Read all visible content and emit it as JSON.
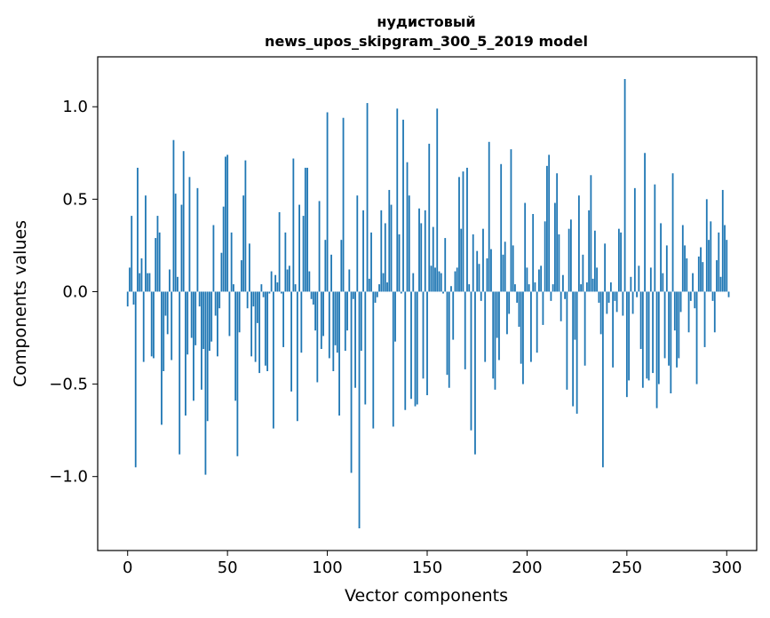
{
  "chart_data": {
    "type": "bar",
    "title": [
      "нудистовый",
      "news_upos_skipgram_300_5_2019 model"
    ],
    "xlabel": "Vector components",
    "ylabel": "Components values",
    "xlim": [
      -15,
      315
    ],
    "ylim": [
      -1.4,
      1.27
    ],
    "xticks": [
      0,
      50,
      100,
      150,
      200,
      250,
      300
    ],
    "xtick_labels": [
      "0",
      "50",
      "100",
      "150",
      "200",
      "250",
      "300"
    ],
    "yticks": [
      -1.0,
      -0.5,
      0.0,
      0.5,
      1.0
    ],
    "ytick_labels": [
      "−1.0",
      "−0.5",
      "0.0",
      "0.5",
      "1.0"
    ],
    "grid": false,
    "bar_color": "#1f77b4",
    "series": [
      {
        "name": "нудистовый",
        "x_start": 0,
        "values": [
          -0.08,
          0.13,
          0.41,
          -0.07,
          -0.95,
          0.67,
          0.1,
          0.18,
          -0.38,
          0.52,
          0.1,
          0.1,
          -0.35,
          -0.36,
          0.29,
          0.41,
          0.32,
          -0.72,
          -0.43,
          -0.13,
          -0.23,
          0.12,
          -0.37,
          0.82,
          0.53,
          0.08,
          -0.88,
          0.47,
          0.76,
          -0.67,
          -0.34,
          0.62,
          -0.25,
          -0.59,
          -0.29,
          0.56,
          -0.08,
          -0.53,
          -0.31,
          -0.99,
          -0.7,
          -0.32,
          -0.27,
          0.36,
          -0.13,
          -0.35,
          -0.09,
          0.21,
          0.46,
          0.73,
          0.74,
          -0.24,
          0.32,
          0.04,
          -0.59,
          -0.89,
          -0.22,
          0.17,
          0.52,
          0.71,
          -0.09,
          0.26,
          -0.35,
          -0.08,
          -0.38,
          -0.17,
          -0.44,
          0.04,
          -0.03,
          -0.4,
          -0.43,
          -0.01,
          0.11,
          -0.74,
          0.09,
          0.05,
          0.43,
          -0.01,
          -0.3,
          0.32,
          0.12,
          0.14,
          -0.54,
          0.72,
          0.04,
          -0.7,
          0.47,
          -0.33,
          0.41,
          0.67,
          0.67,
          0.11,
          -0.04,
          -0.07,
          -0.21,
          -0.49,
          0.49,
          -0.31,
          -0.24,
          0.28,
          0.97,
          -0.36,
          0.2,
          -0.43,
          -0.29,
          -0.33,
          -0.67,
          0.28,
          0.94,
          -0.32,
          -0.21,
          0.12,
          -0.98,
          -0.04,
          -0.52,
          0.52,
          -1.28,
          -0.32,
          0.44,
          -0.61,
          1.02,
          0.07,
          0.32,
          -0.74,
          -0.06,
          -0.03,
          0.04,
          0.44,
          0.1,
          0.37,
          0.05,
          0.55,
          0.47,
          -0.73,
          -0.27,
          0.99,
          0.31,
          -0.01,
          0.93,
          -0.64,
          0.7,
          0.52,
          -0.58,
          0.1,
          -0.62,
          -0.61,
          0.45,
          0.37,
          -0.47,
          0.44,
          -0.56,
          0.8,
          0.14,
          0.35,
          0.13,
          0.99,
          0.11,
          0.1,
          -0.01,
          0.29,
          -0.45,
          -0.52,
          0.03,
          -0.26,
          0.11,
          0.13,
          0.62,
          0.34,
          0.65,
          -0.42,
          0.67,
          0.04,
          -0.75,
          0.31,
          -0.88,
          0.22,
          0.15,
          -0.05,
          0.34,
          -0.38,
          0.18,
          0.81,
          0.23,
          -0.47,
          -0.53,
          -0.25,
          -0.37,
          0.69,
          0.2,
          0.27,
          -0.23,
          -0.12,
          0.77,
          0.25,
          0.04,
          -0.06,
          -0.19,
          -0.39,
          -0.5,
          0.48,
          0.13,
          0.04,
          -0.38,
          0.42,
          0.05,
          -0.33,
          0.12,
          0.14,
          -0.18,
          0.38,
          0.68,
          0.74,
          -0.05,
          0.04,
          0.48,
          0.64,
          0.31,
          -0.16,
          0.09,
          -0.04,
          -0.53,
          0.34,
          0.39,
          -0.62,
          -0.26,
          -0.66,
          0.52,
          0.04,
          0.2,
          -0.4,
          0.05,
          0.44,
          0.63,
          0.07,
          0.33,
          0.13,
          -0.06,
          -0.23,
          -0.95,
          0.26,
          -0.12,
          -0.06,
          0.05,
          -0.41,
          -0.05,
          -0.11,
          0.34,
          0.32,
          -0.13,
          1.15,
          -0.57,
          -0.48,
          0.08,
          -0.12,
          0.56,
          -0.03,
          0.14,
          -0.31,
          -0.52,
          0.75,
          -0.47,
          -0.48,
          0.13,
          -0.44,
          0.58,
          -0.63,
          -0.5,
          0.37,
          0.1,
          -0.36,
          0.25,
          -0.4,
          -0.55,
          0.64,
          -0.21,
          -0.41,
          -0.36,
          -0.11,
          0.36,
          0.25,
          0.18,
          -0.22,
          -0.05,
          0.1,
          -0.09,
          -0.5,
          0.19,
          0.24,
          0.16,
          -0.3,
          0.5,
          0.28,
          0.38,
          -0.05,
          -0.22,
          0.17,
          0.32,
          0.08,
          0.55,
          0.36,
          0.28,
          -0.03
        ]
      }
    ]
  }
}
